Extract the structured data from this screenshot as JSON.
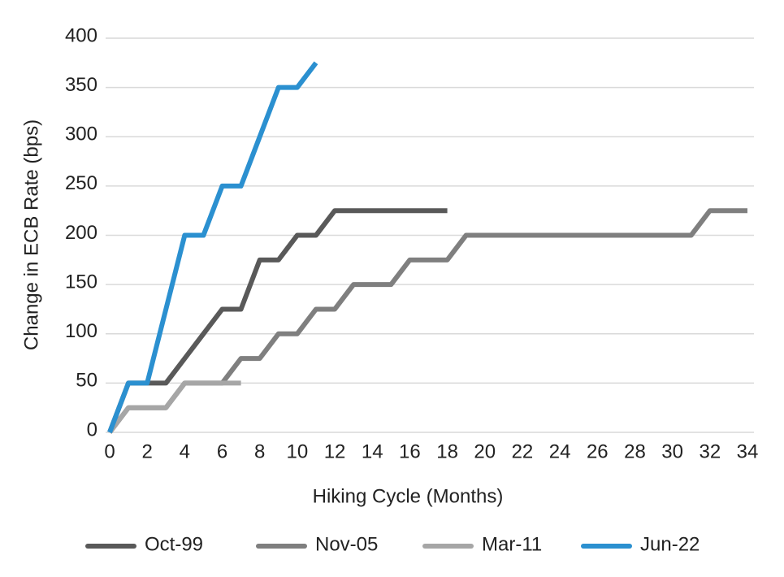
{
  "chart_data": {
    "type": "line",
    "x_label": "Hiking Cycle (Months)",
    "y_label": "Change in ECB Rate (bps)",
    "x": [
      0,
      1,
      2,
      3,
      4,
      5,
      6,
      7,
      8,
      9,
      10,
      11,
      12,
      13,
      14,
      15,
      16,
      17,
      18,
      19,
      20,
      21,
      22,
      23,
      24,
      25,
      26,
      27,
      28,
      29,
      30,
      31,
      32,
      33,
      34
    ],
    "series": [
      {
        "name": "Oct-99",
        "color": "#595959",
        "values": [
          0,
          50,
          50,
          50,
          75,
          100,
          125,
          125,
          175,
          175,
          200,
          200,
          225,
          225,
          225,
          225,
          225,
          225,
          225,
          null,
          null,
          null,
          null,
          null,
          null,
          null,
          null,
          null,
          null,
          null,
          null,
          null,
          null,
          null,
          null
        ]
      },
      {
        "name": "Nov-05",
        "color": "#7f7f7f",
        "values": [
          0,
          25,
          25,
          25,
          50,
          50,
          50,
          75,
          75,
          100,
          100,
          125,
          125,
          150,
          150,
          150,
          175,
          175,
          175,
          200,
          200,
          200,
          200,
          200,
          200,
          200,
          200,
          200,
          200,
          200,
          200,
          200,
          225,
          225,
          225
        ]
      },
      {
        "name": "Mar-11",
        "color": "#a6a6a6",
        "values": [
          0,
          25,
          25,
          25,
          50,
          50,
          50,
          50,
          null,
          null,
          null,
          null,
          null,
          null,
          null,
          null,
          null,
          null,
          null,
          null,
          null,
          null,
          null,
          null,
          null,
          null,
          null,
          null,
          null,
          null,
          null,
          null,
          null,
          null,
          null
        ]
      },
      {
        "name": "Jun-22",
        "color": "#2b90d0",
        "values": [
          0,
          50,
          50,
          125,
          200,
          200,
          250,
          250,
          300,
          350,
          350,
          375,
          null,
          null,
          null,
          null,
          null,
          null,
          null,
          null,
          null,
          null,
          null,
          null,
          null,
          null,
          null,
          null,
          null,
          null,
          null,
          null,
          null,
          null,
          null
        ]
      }
    ],
    "xlim": [
      0,
      34
    ],
    "xticks": [
      0,
      2,
      4,
      6,
      8,
      10,
      12,
      14,
      16,
      18,
      20,
      22,
      24,
      26,
      28,
      30,
      32,
      34
    ],
    "ylim": [
      0,
      400
    ],
    "yticks": [
      0,
      50,
      100,
      150,
      200,
      250,
      300,
      350,
      400
    ],
    "grid": true,
    "legend": "bottom"
  }
}
